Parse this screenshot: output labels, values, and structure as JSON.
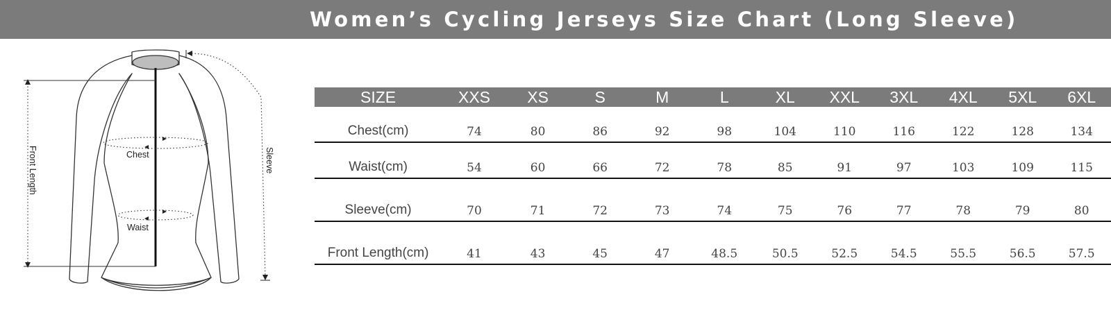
{
  "title": "Women’s Cycling Jerseys Size Chart (Long Sleeve)",
  "diagram": {
    "labels": {
      "front_length": "Front Length",
      "sleeve": "Sleeve",
      "chest": "Chest",
      "waist": "Waist"
    }
  },
  "table": {
    "header": [
      "SIZE",
      "XXS",
      "XS",
      "S",
      "M",
      "L",
      "XL",
      "XXL",
      "3XL",
      "4XL",
      "5XL",
      "6XL"
    ],
    "rows": [
      {
        "label": "Chest(cm)",
        "values": [
          "74",
          "80",
          "86",
          "92",
          "98",
          "104",
          "110",
          "116",
          "122",
          "128",
          "134"
        ]
      },
      {
        "label": "Waist(cm)",
        "values": [
          "54",
          "60",
          "66",
          "72",
          "78",
          "85",
          "91",
          "97",
          "103",
          "109",
          "115"
        ]
      },
      {
        "label": "Sleeve(cm)",
        "values": [
          "70",
          "71",
          "72",
          "73",
          "74",
          "75",
          "76",
          "77",
          "78",
          "79",
          "80"
        ]
      },
      {
        "label": "Front Length(cm)",
        "values": [
          "41",
          "43",
          "45",
          "47",
          "48.5",
          "50.5",
          "52.5",
          "54.5",
          "55.5",
          "56.5",
          "57.5"
        ]
      }
    ]
  },
  "colors": {
    "header_background": "#7b7b7b",
    "header_text": "#ffffff",
    "body_text": "#444444",
    "rule": "#111111"
  }
}
